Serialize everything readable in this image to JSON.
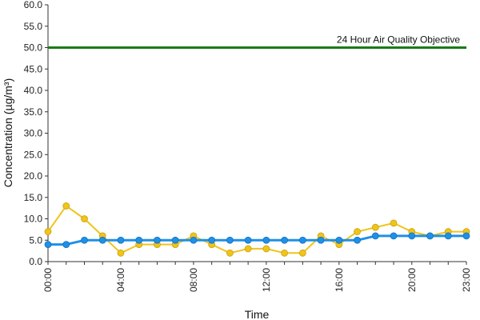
{
  "chart_data": {
    "type": "line",
    "xlabel": "Time",
    "ylabel": "Concentration (µg/m³)",
    "ylim": [
      0,
      60
    ],
    "y_ticks": [
      "0.0",
      "5.0",
      "10.0",
      "15.0",
      "20.0",
      "25.0",
      "30.0",
      "35.0",
      "40.0",
      "45.0",
      "50.0",
      "55.0",
      "60.0"
    ],
    "x_ticks": [
      "00:00",
      "04:00",
      "08:00",
      "12:00",
      "16:00",
      "20:00",
      "23:00"
    ],
    "x_hours": [
      0,
      1,
      2,
      3,
      4,
      5,
      6,
      7,
      8,
      9,
      10,
      11,
      12,
      13,
      14,
      15,
      16,
      17,
      18,
      19,
      20,
      21,
      22,
      23
    ],
    "grid": false,
    "objective": {
      "value": 50,
      "label": "24 Hour Air Quality Objective",
      "color": "#1a7a1a"
    },
    "series": [
      {
        "color": "#f0c419",
        "values": [
          7,
          13,
          10,
          6,
          2,
          4,
          4,
          4,
          6,
          4,
          2,
          3,
          3,
          2,
          2,
          6,
          4,
          7,
          8,
          9,
          7,
          6,
          7,
          7
        ]
      },
      {
        "color": "#1e90e8",
        "values": [
          4,
          4,
          5,
          5,
          5,
          5,
          5,
          5,
          5,
          5,
          5,
          5,
          5,
          5,
          5,
          5,
          5,
          5,
          6,
          6,
          6,
          6,
          6,
          6
        ]
      }
    ]
  }
}
